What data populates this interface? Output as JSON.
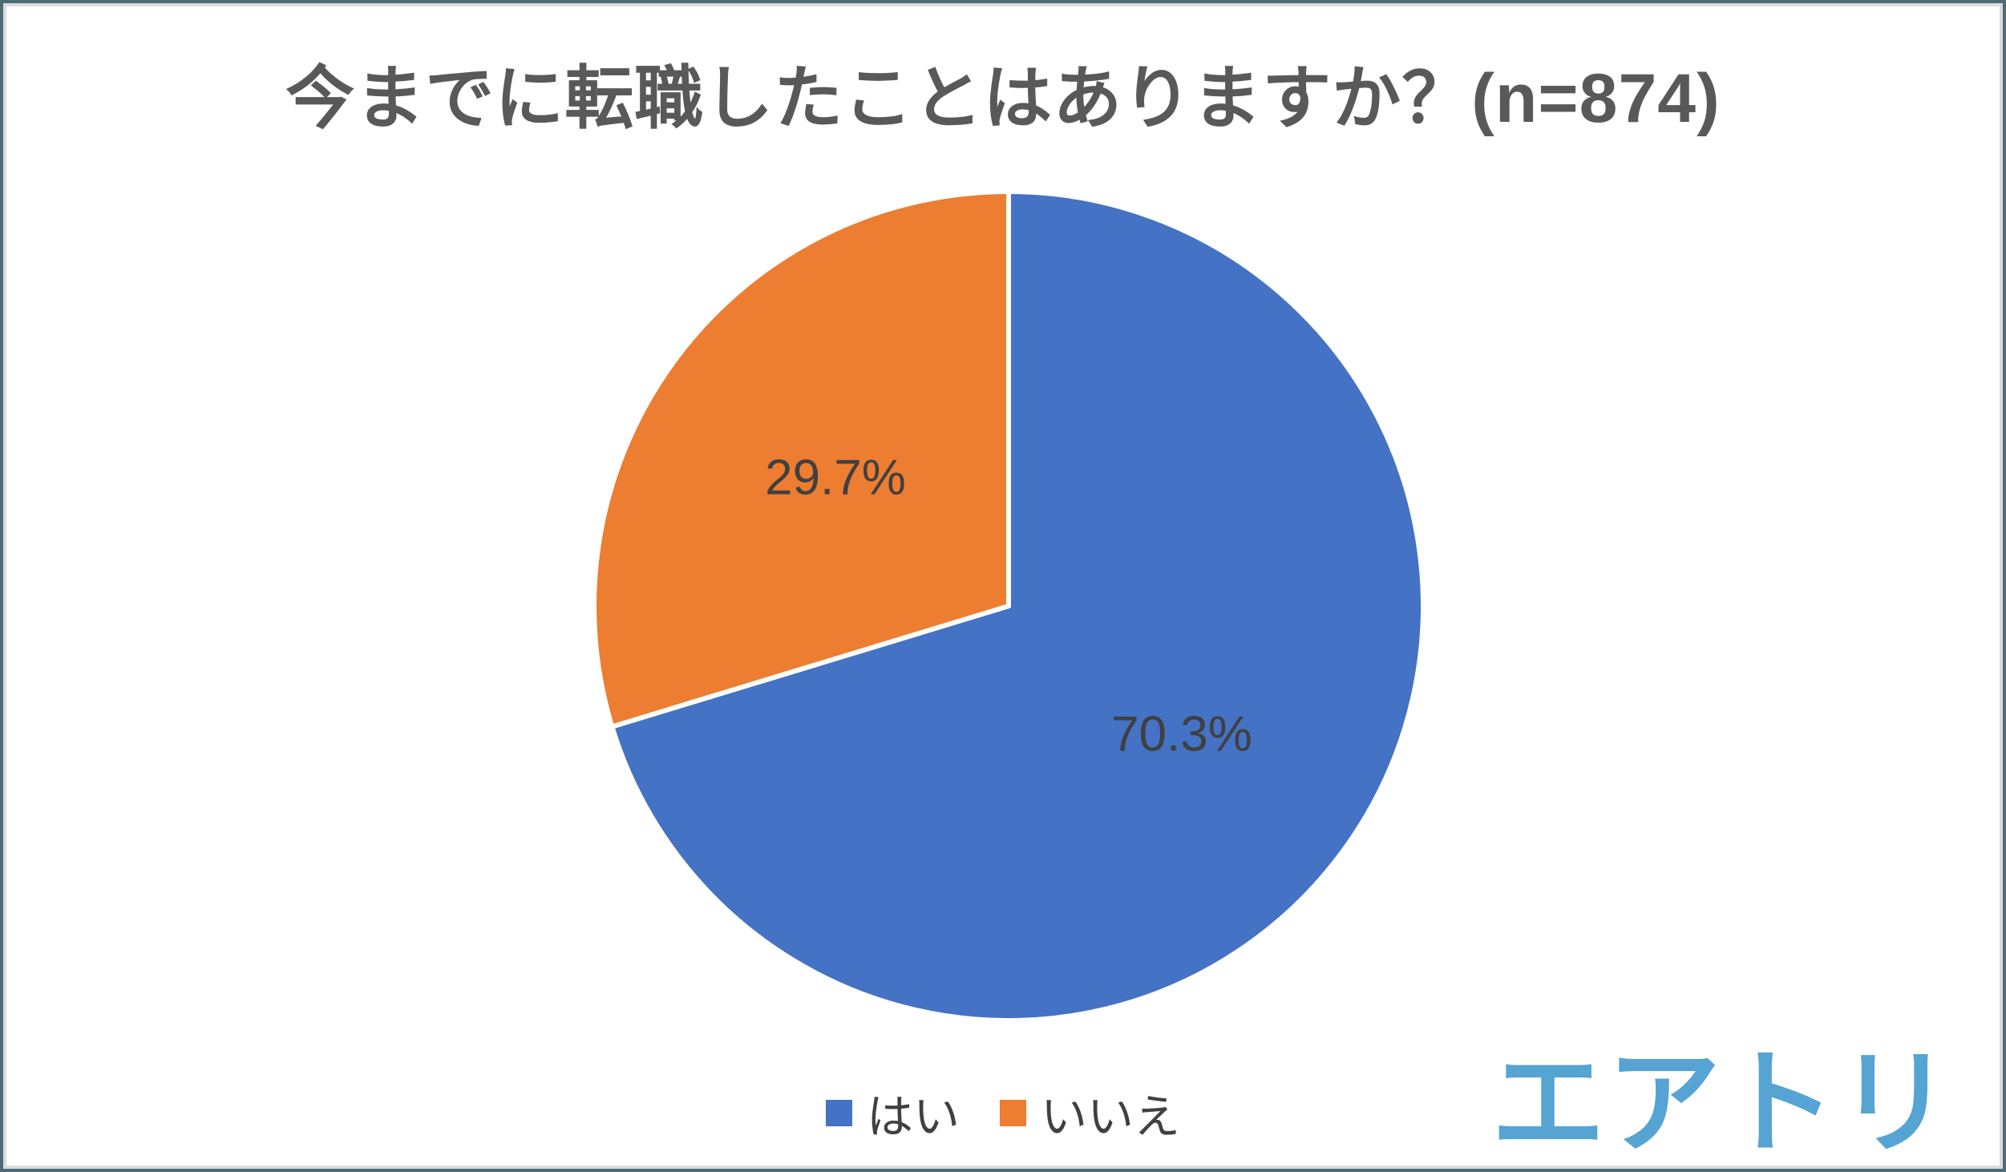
{
  "title": "今までに転職したことはありますか？(n=874)",
  "chart_data": {
    "type": "pie",
    "title": "今までに転職したことはありますか？(n=874)",
    "sample_size_text": "n=874",
    "labels": [
      "はい",
      "いいえ"
    ],
    "values": [
      70.3,
      29.7
    ],
    "data_labels": [
      "70.3%",
      "29.7%"
    ],
    "colors": [
      "#4472C4",
      "#ED7D31"
    ],
    "slice_border_color": "#FFFFFF",
    "start_angle_deg": 0,
    "direction": "clockwise",
    "legend_position": "bottom",
    "data_label_radius_ratio": 0.52
  },
  "legend": {
    "items": [
      {
        "label": "はい"
      },
      {
        "label": "いいえ"
      }
    ]
  },
  "footer": {
    "logo_text": "エアトリ"
  },
  "colors": {
    "title_color": "#595959",
    "label_color": "#404040",
    "logo_color": "#55A4D3",
    "border_outer": "#4E6B76",
    "border_inner": "#DBDBDB"
  }
}
